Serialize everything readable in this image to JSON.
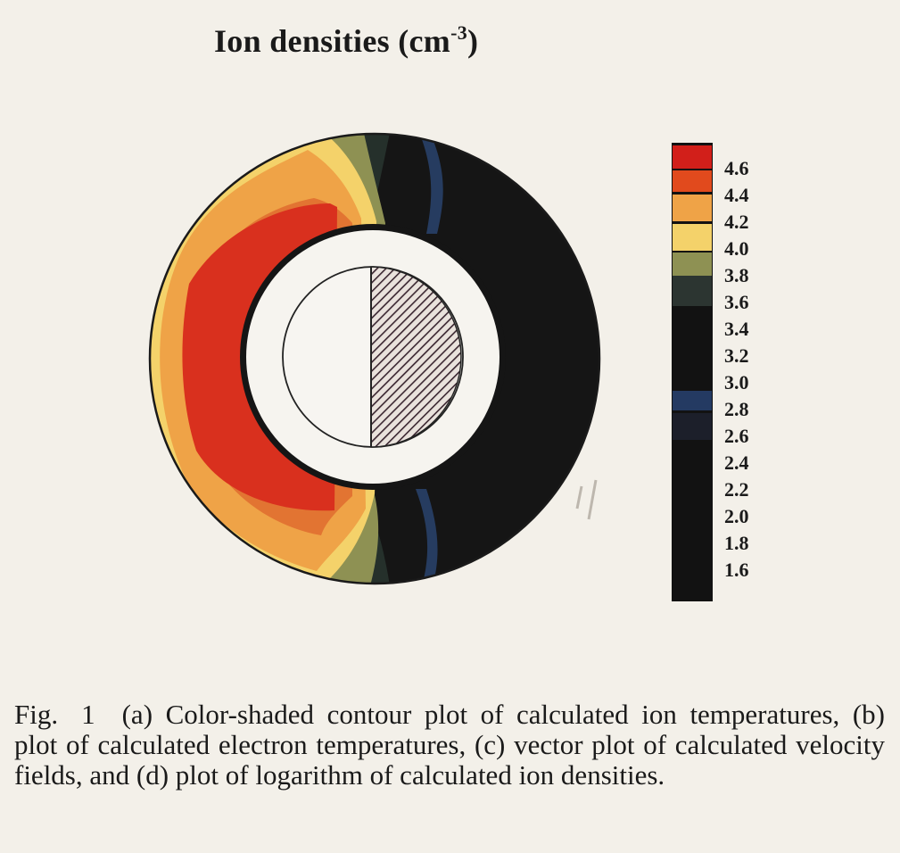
{
  "figure": {
    "title": "Ion densities (cm",
    "title_exponent": "-3",
    "title_close": ")"
  },
  "colorbar": {
    "labels": [
      "4.6",
      "4.4",
      "4.2",
      "4.0",
      "3.8",
      "3.6",
      "3.4",
      "3.2",
      "3.0",
      "2.8",
      "2.6",
      "2.4",
      "2.2",
      "2.0",
      "1.8",
      "1.6"
    ],
    "colors": {
      "4.6": "#d21f1a",
      "4.4": "#e14a1d",
      "4.2": "#efa347",
      "4.0": "#f4d26a",
      "3.8": "#8e9153",
      "3.6": "#2c3531",
      "3.4": "#1b1d1c",
      "3.0": "#243a62",
      "2.8": "#1c1f2a",
      "background": "#121212"
    }
  },
  "caption": {
    "fig_label": "Fig.",
    "fig_number": "1",
    "text": "(a) Color-shaded contour plot of calculated ion temperatures, (b) plot of calculated electron temperatures, (c) vector plot of calculated velocity fields, and (d) plot of logarithm of calculated ion densities."
  },
  "colors": {
    "paper": "#f3f0e9",
    "ring_dark": "#151515",
    "red": "#d9301e",
    "orange": "#efa347",
    "yellow": "#f4d26a",
    "olive": "#8e9153",
    "blue_streak": "#29436d",
    "hatch": "#3a2630"
  }
}
